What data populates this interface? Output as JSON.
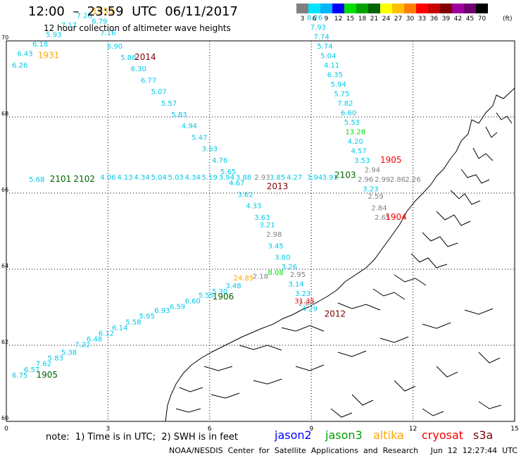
{
  "header": {
    "title": "12:00  –  23:59  UTC  06/11/2017",
    "subtitle": "12 hour collection of altimeter wave heights"
  },
  "legend": {
    "unit": "(ft)",
    "items": [
      {
        "label": "3",
        "color": "#808080"
      },
      {
        "label": "6",
        "color": "#00e5ff"
      },
      {
        "label": "9",
        "color": "#00b4ff"
      },
      {
        "label": "12",
        "color": "#0000ff"
      },
      {
        "label": "15",
        "color": "#00e000"
      },
      {
        "label": "18",
        "color": "#00a000"
      },
      {
        "label": "21",
        "color": "#006400"
      },
      {
        "label": "24",
        "color": "#ffff00"
      },
      {
        "label": "27",
        "color": "#ffc000"
      },
      {
        "label": "30",
        "color": "#ff8000"
      },
      {
        "label": "33",
        "color": "#ff0000"
      },
      {
        "label": "36",
        "color": "#c80000"
      },
      {
        "label": "39",
        "color": "#800000"
      },
      {
        "label": "42",
        "color": "#a000a0"
      },
      {
        "label": "45",
        "color": "#700070"
      },
      {
        "label": "70",
        "color": "#000000"
      }
    ]
  },
  "axes": {
    "lon_ticks": [
      "0",
      "3",
      "6",
      "9",
      "12",
      "15"
    ],
    "lat_ticks": [
      "60",
      "62",
      "64",
      "66",
      "68",
      "70"
    ],
    "lon_range": [
      0,
      15
    ],
    "lat_range": [
      60,
      70
    ]
  },
  "footer": {
    "note": "note:  1) Time is in UTC;  2) SWH is in feet",
    "missions": [
      {
        "name": "jason2",
        "color": "#0000ff"
      },
      {
        "name": "jason3",
        "color": "#00a000"
      },
      {
        "name": "altika",
        "color": "#ffa500"
      },
      {
        "name": "cryosat",
        "color": "#ff0000"
      },
      {
        "name": "s3a",
        "color": "#800000"
      }
    ],
    "credit": "NOAA/NESDIS  Center  for  Satellite  Applications  and  Research     Jun  12  12:27:44  UTC  2017"
  },
  "tracks": [
    {
      "id": "t1930",
      "color": "#00c8e8",
      "points": [
        {
          "lon": 0.4,
          "lat": 69.3,
          "v": "6.26"
        },
        {
          "lon": 0.55,
          "lat": 69.6,
          "v": "6.43"
        },
        {
          "lon": 1.0,
          "lat": 69.85,
          "v": "6.18"
        },
        {
          "lon": 1.4,
          "lat": 70.1,
          "v": "5.93"
        },
        {
          "lon": 1.85,
          "lat": 70.35,
          "v": "7.17"
        },
        {
          "lon": 2.3,
          "lat": 70.6,
          "v": "7.26"
        },
        {
          "lon": 2.75,
          "lat": 70.45,
          "v": "6.79"
        },
        {
          "lon": 3.0,
          "lat": 70.15,
          "v": "7.16"
        }
      ]
    },
    {
      "id": "t2014",
      "color": "#00c8e8",
      "points": [
        {
          "lon": 3.2,
          "lat": 69.8,
          "v": "5.90"
        },
        {
          "lon": 3.6,
          "lat": 69.5,
          "v": "5.88"
        },
        {
          "lon": 3.9,
          "lat": 69.2,
          "v": "6.30"
        },
        {
          "lon": 4.2,
          "lat": 68.9,
          "v": "6.77"
        },
        {
          "lon": 4.5,
          "lat": 68.6,
          "v": "5.07"
        },
        {
          "lon": 4.8,
          "lat": 68.3,
          "v": "5.57"
        },
        {
          "lon": 5.1,
          "lat": 68.0,
          "v": "5.83"
        },
        {
          "lon": 5.4,
          "lat": 67.7,
          "v": "4.94"
        },
        {
          "lon": 5.7,
          "lat": 67.4,
          "v": "5.47"
        },
        {
          "lon": 6.0,
          "lat": 67.1,
          "v": "3.63"
        },
        {
          "lon": 6.3,
          "lat": 66.8,
          "v": "4.76"
        },
        {
          "lon": 6.55,
          "lat": 66.5,
          "v": "5.65"
        },
        {
          "lon": 6.8,
          "lat": 66.2,
          "v": "4.67"
        },
        {
          "lon": 7.05,
          "lat": 65.9,
          "v": "3.62"
        },
        {
          "lon": 7.3,
          "lat": 65.6,
          "v": "4.33"
        },
        {
          "lon": 7.55,
          "lat": 65.3,
          "v": "3.63"
        }
      ]
    },
    {
      "id": "t2013",
      "color": "#00c8e8",
      "points": [
        {
          "lon": 7.7,
          "lat": 65.1,
          "v": "3.21"
        },
        {
          "lon": 7.95,
          "lat": 64.55,
          "v": "3.45"
        },
        {
          "lon": 8.15,
          "lat": 64.25,
          "v": "3.80"
        },
        {
          "lon": 8.35,
          "lat": 64.0,
          "v": "3.26"
        },
        {
          "lon": 8.55,
          "lat": 63.55,
          "v": "3.14"
        },
        {
          "lon": 8.75,
          "lat": 63.3,
          "v": "3.23"
        }
      ]
    },
    {
      "id": "t2013g",
      "color": "#808080",
      "points": [
        {
          "lon": 7.9,
          "lat": 64.85,
          "v": "2.98"
        },
        {
          "lon": 8.6,
          "lat": 63.8,
          "v": "2.95"
        },
        {
          "lon": 8.85,
          "lat": 63.05,
          "v": "2.88"
        }
      ]
    },
    {
      "id": "t2103",
      "color": "#00c8e8",
      "points": [
        {
          "lon": 9.1,
          "lat": 70.55,
          "v": "8.26"
        },
        {
          "lon": 9.2,
          "lat": 70.3,
          "v": "7.93"
        },
        {
          "lon": 9.3,
          "lat": 70.05,
          "v": "7.74"
        },
        {
          "lon": 9.4,
          "lat": 69.8,
          "v": "5.74"
        },
        {
          "lon": 9.5,
          "lat": 69.55,
          "v": "5.04"
        },
        {
          "lon": 9.6,
          "lat": 69.3,
          "v": "4.11"
        },
        {
          "lon": 9.7,
          "lat": 69.05,
          "v": "6.35"
        },
        {
          "lon": 9.8,
          "lat": 68.8,
          "v": "5.94"
        },
        {
          "lon": 9.9,
          "lat": 68.55,
          "v": "5.75"
        },
        {
          "lon": 10.0,
          "lat": 68.3,
          "v": "7.82"
        },
        {
          "lon": 10.1,
          "lat": 68.05,
          "v": "6.60"
        },
        {
          "lon": 10.2,
          "lat": 67.8,
          "v": "5.53"
        },
        {
          "lon": 10.3,
          "lat": 67.3,
          "v": "4.20"
        },
        {
          "lon": 10.4,
          "lat": 67.05,
          "v": "4.57"
        },
        {
          "lon": 10.5,
          "lat": 66.8,
          "v": "3.53"
        },
        {
          "lon": 10.75,
          "lat": 66.05,
          "v": "3.23"
        }
      ]
    },
    {
      "id": "t2103g",
      "color": "#00e000",
      "points": [
        {
          "lon": 10.3,
          "lat": 67.55,
          "v": "13.28"
        }
      ]
    },
    {
      "id": "t1904",
      "color": "#808080",
      "points": [
        {
          "lon": 10.8,
          "lat": 66.55,
          "v": "2.94"
        },
        {
          "lon": 10.9,
          "lat": 65.85,
          "v": "2.59"
        },
        {
          "lon": 11.0,
          "lat": 65.55,
          "v": "2.84"
        },
        {
          "lon": 11.1,
          "lat": 65.3,
          "v": "2.65"
        }
      ]
    },
    {
      "id": "t2101",
      "color": "#00c8e8",
      "points": [
        {
          "lon": 0.9,
          "lat": 66.3,
          "v": "5.68"
        },
        {
          "lon": 3.0,
          "lat": 66.35,
          "v": "4.06"
        },
        {
          "lon": 3.5,
          "lat": 66.35,
          "v": "4.13"
        },
        {
          "lon": 4.0,
          "lat": 66.35,
          "v": "4.34"
        },
        {
          "lon": 4.5,
          "lat": 66.35,
          "v": "5.04"
        },
        {
          "lon": 5.0,
          "lat": 66.35,
          "v": "5.03"
        },
        {
          "lon": 5.5,
          "lat": 66.35,
          "v": "4.34"
        },
        {
          "lon": 6.0,
          "lat": 66.35,
          "v": "5.19"
        },
        {
          "lon": 6.5,
          "lat": 66.35,
          "v": "3.94"
        },
        {
          "lon": 7.0,
          "lat": 66.35,
          "v": "3.88"
        },
        {
          "lon": 8.0,
          "lat": 66.35,
          "v": "3.85"
        },
        {
          "lon": 8.5,
          "lat": 66.35,
          "v": "4.27"
        },
        {
          "lon": 9.1,
          "lat": 66.35,
          "v": "3.94"
        },
        {
          "lon": 9.55,
          "lat": 66.35,
          "v": "3.91"
        }
      ]
    },
    {
      "id": "t2101g",
      "color": "#808080",
      "points": [
        {
          "lon": 7.55,
          "lat": 66.35,
          "v": "2.93"
        },
        {
          "lon": 10.6,
          "lat": 66.3,
          "v": "2.96"
        },
        {
          "lon": 11.1,
          "lat": 66.3,
          "v": "2.99"
        },
        {
          "lon": 11.55,
          "lat": 66.3,
          "v": "2.86"
        },
        {
          "lon": 12.0,
          "lat": 66.3,
          "v": "2.26"
        }
      ]
    },
    {
      "id": "t1905",
      "color": "#00c8e8",
      "points": [
        {
          "lon": 0.4,
          "lat": 61.15,
          "v": "6.75"
        },
        {
          "lon": 0.75,
          "lat": 61.3,
          "v": "6.57"
        },
        {
          "lon": 1.1,
          "lat": 61.45,
          "v": "7.62"
        },
        {
          "lon": 1.45,
          "lat": 61.6,
          "v": "5.83"
        },
        {
          "lon": 1.85,
          "lat": 61.75,
          "v": "5.38"
        },
        {
          "lon": 2.25,
          "lat": 61.95,
          "v": "7.22"
        },
        {
          "lon": 2.6,
          "lat": 62.1,
          "v": "6.48"
        },
        {
          "lon": 2.95,
          "lat": 62.25,
          "v": "6.12"
        },
        {
          "lon": 3.35,
          "lat": 62.4,
          "v": "6.14"
        },
        {
          "lon": 3.75,
          "lat": 62.55,
          "v": "5.58"
        },
        {
          "lon": 4.15,
          "lat": 62.7,
          "v": "5.95"
        },
        {
          "lon": 4.6,
          "lat": 62.85,
          "v": "6.93"
        },
        {
          "lon": 5.05,
          "lat": 62.95,
          "v": "6.59"
        },
        {
          "lon": 5.5,
          "lat": 63.1,
          "v": "6.60"
        },
        {
          "lon": 5.9,
          "lat": 63.25,
          "v": "5.55"
        },
        {
          "lon": 6.3,
          "lat": 63.35,
          "v": "5.30"
        },
        {
          "lon": 6.7,
          "lat": 63.5,
          "v": "3.48"
        }
      ]
    },
    {
      "id": "t1905y",
      "color": "#ffa500",
      "points": [
        {
          "lon": 7.0,
          "lat": 63.7,
          "v": "24.85"
        }
      ]
    },
    {
      "id": "t1905g",
      "color": "#808080",
      "points": [
        {
          "lon": 7.5,
          "lat": 63.75,
          "v": "2.18"
        }
      ]
    },
    {
      "id": "t1905gr",
      "color": "#00e000",
      "points": [
        {
          "lon": 7.95,
          "lat": 63.85,
          "v": "8.08"
        }
      ]
    },
    {
      "id": "t2012",
      "color": "#ff0000",
      "points": [
        {
          "lon": 8.8,
          "lat": 63.1,
          "v": "31.35"
        }
      ]
    },
    {
      "id": "t2012c",
      "color": "#00c8e8",
      "points": [
        {
          "lon": 8.95,
          "lat": 62.9,
          "v": "4.29"
        }
      ]
    }
  ],
  "pass_labels": [
    {
      "text": "1930",
      "lon": 2.85,
      "lat": 70.7,
      "color": "#ffa500"
    },
    {
      "text": "1931",
      "lon": 1.25,
      "lat": 69.55,
      "color": "#ffa500"
    },
    {
      "text": "2014",
      "lon": 4.1,
      "lat": 69.5,
      "color": "#800000"
    },
    {
      "text": "2101",
      "lon": 1.6,
      "lat": 66.3,
      "color": "#006400"
    },
    {
      "text": "2102",
      "lon": 2.3,
      "lat": 66.3,
      "color": "#006400"
    },
    {
      "text": "2013",
      "lon": 8.0,
      "lat": 66.1,
      "color": "#800000"
    },
    {
      "text": "2103",
      "lon": 10.0,
      "lat": 66.4,
      "color": "#006400"
    },
    {
      "text": "1905",
      "lon": 11.35,
      "lat": 66.8,
      "color": "#ff0000"
    },
    {
      "text": "1904",
      "lon": 11.5,
      "lat": 65.3,
      "color": "#ff0000"
    },
    {
      "text": "2012",
      "lon": 9.7,
      "lat": 62.75,
      "color": "#800000"
    },
    {
      "text": "1906",
      "lon": 6.4,
      "lat": 63.2,
      "color": "#006400"
    },
    {
      "text": "1905",
      "lon": 1.2,
      "lat": 61.15,
      "color": "#006400"
    }
  ]
}
